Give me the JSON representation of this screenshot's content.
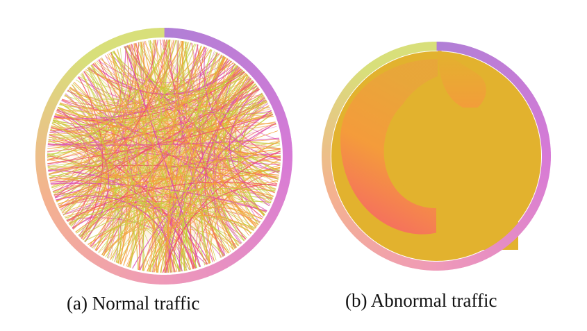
{
  "figure": {
    "panels": [
      {
        "id": "a",
        "caption": "(a) Normal traffic",
        "pattern": "dense-crossing-chords"
      },
      {
        "id": "b",
        "caption": "(b) Abnormal traffic",
        "pattern": "single-source-fan"
      }
    ],
    "colors": {
      "ring_green": "#d8df7a",
      "ring_peach": "#f4b28f",
      "ring_pink": "#ef9ab8",
      "ring_magenta": "#d77ad6",
      "ring_purple": "#b07fd6",
      "chord_orange": "#f3a03a",
      "chord_green": "#c4cf3d",
      "chord_red": "#ef4f6b",
      "chord_magenta": "#d94ab0",
      "fill_gold": "#e2b22e",
      "fan_red": "#f75a6f",
      "fan_orange": "#f59a3c"
    }
  }
}
